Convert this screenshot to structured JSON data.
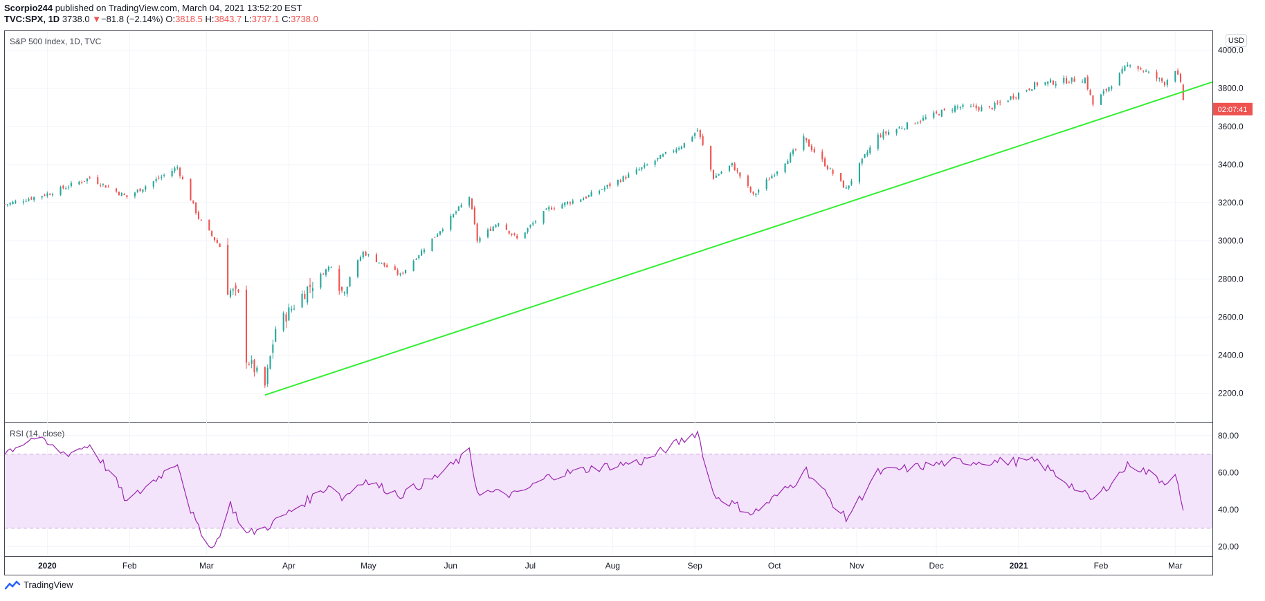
{
  "header": {
    "publisher": "Scorpio244",
    "published_text": " published on TradingView.com, March 04, 2021 13:52:20 EST",
    "symbol": "TVC:SPX, 1D",
    "last": "3738.0",
    "change": "−81.8 (−2.14%)",
    "o_label": "O:",
    "o": "3818.5",
    "h_label": "H:",
    "h": "3843.7",
    "l_label": "L:",
    "l": "3737.1",
    "c_label": "C:",
    "c": "3738.0"
  },
  "footer": {
    "brand": "TradingView"
  },
  "colors": {
    "up": "#26a69a",
    "down": "#ef5350",
    "trendline": "#33ee33",
    "rsi": "#9c27b0",
    "rsi_band": "#f3e4fb"
  },
  "chart_data": [
    {
      "type": "candlestick",
      "title": "S&P 500 Index, 1D, TVC",
      "currency": "USD",
      "countdown": "02:07:41",
      "ylim": [
        2050,
        4100
      ],
      "yticks": [
        2200,
        2400,
        2600,
        2800,
        3000,
        3200,
        3400,
        3600,
        3800,
        4000
      ],
      "ytick_labels": [
        "2200.0",
        "2400.0",
        "2600.0",
        "2800.0",
        "3000.0",
        "3200.0",
        "3400.0",
        "3600.0",
        "3800.0",
        "4000.0"
      ],
      "last_value": 3738.0,
      "xlim": [
        "2019-12-16",
        "2021-03-15"
      ],
      "xticks": [
        "2020-01-01",
        "2020-02-01",
        "2020-03-01",
        "2020-04-01",
        "2020-05-01",
        "2020-06-01",
        "2020-07-01",
        "2020-08-01",
        "2020-09-01",
        "2020-10-01",
        "2020-11-01",
        "2020-12-01",
        "2021-01-01",
        "2021-02-01",
        "2021-03-01"
      ],
      "xtick_labels": [
        "2020",
        "Feb",
        "Mar",
        "Apr",
        "May",
        "Jun",
        "Jul",
        "Aug",
        "Sep",
        "Oct",
        "Nov",
        "Dec",
        "2021",
        "Feb",
        "Mar"
      ],
      "anchors": [
        [
          "2019-12-16",
          3190
        ],
        [
          "2020-01-02",
          3250
        ],
        [
          "2020-01-17",
          3330
        ],
        [
          "2020-01-31",
          3230
        ],
        [
          "2020-02-19",
          3385
        ],
        [
          "2020-02-27",
          3120
        ],
        [
          "2020-03-06",
          2970
        ],
        [
          "2020-03-09",
          2745
        ],
        [
          "2020-03-13",
          2710
        ],
        [
          "2020-03-16",
          2385
        ],
        [
          "2020-03-20",
          2305
        ],
        [
          "2020-03-23",
          2237
        ],
        [
          "2020-03-27",
          2540
        ],
        [
          "2020-04-08",
          2750
        ],
        [
          "2020-04-17",
          2875
        ],
        [
          "2020-04-21",
          2737
        ],
        [
          "2020-04-29",
          2940
        ],
        [
          "2020-05-13",
          2820
        ],
        [
          "2020-05-27",
          3040
        ],
        [
          "2020-06-08",
          3232
        ],
        [
          "2020-06-11",
          3002
        ],
        [
          "2020-06-19",
          3100
        ],
        [
          "2020-06-26",
          3010
        ],
        [
          "2020-07-08",
          3170
        ],
        [
          "2020-07-23",
          3235
        ],
        [
          "2020-08-12",
          3380
        ],
        [
          "2020-08-28",
          3510
        ],
        [
          "2020-09-02",
          3580
        ],
        [
          "2020-09-08",
          3332
        ],
        [
          "2020-09-15",
          3400
        ],
        [
          "2020-09-23",
          3237
        ],
        [
          "2020-10-09",
          3477
        ],
        [
          "2020-10-12",
          3534
        ],
        [
          "2020-10-28",
          3271
        ],
        [
          "2020-11-04",
          3443
        ],
        [
          "2020-11-09",
          3550
        ],
        [
          "2020-12-08",
          3702
        ],
        [
          "2020-12-21",
          3694
        ],
        [
          "2021-01-08",
          3824
        ],
        [
          "2021-01-26",
          3850
        ],
        [
          "2021-01-29",
          3714
        ],
        [
          "2021-02-12",
          3934
        ],
        [
          "2021-02-25",
          3829
        ],
        [
          "2021-03-01",
          3901
        ],
        [
          "2021-03-03",
          3819
        ],
        [
          "2021-03-04",
          3738
        ]
      ],
      "trendline": {
        "from": [
          "2020-03-23",
          2191
        ],
        "to": [
          "2021-03-15",
          3833
        ]
      }
    },
    {
      "type": "line",
      "title": "RSI (14, close)",
      "ylim": [
        15,
        87
      ],
      "yticks": [
        20,
        40,
        60,
        80
      ],
      "ytick_labels": [
        "20.00",
        "40.00",
        "60.00",
        "80.00"
      ],
      "band": [
        30,
        70
      ],
      "series": [
        {
          "anchors": [
            [
              "2019-12-16",
              71
            ],
            [
              "2019-12-27",
              79
            ],
            [
              "2020-01-08",
              70
            ],
            [
              "2020-01-17",
              75
            ],
            [
              "2020-01-27",
              55
            ],
            [
              "2020-01-31",
              44
            ],
            [
              "2020-02-19",
              66
            ],
            [
              "2020-02-24",
              40
            ],
            [
              "2020-02-28",
              26
            ],
            [
              "2020-03-04",
              20
            ],
            [
              "2020-03-10",
              43
            ],
            [
              "2020-03-16",
              27
            ],
            [
              "2020-03-23",
              30
            ],
            [
              "2020-04-08",
              45
            ],
            [
              "2020-04-17",
              54
            ],
            [
              "2020-04-21",
              46
            ],
            [
              "2020-04-29",
              56
            ],
            [
              "2020-05-13",
              48
            ],
            [
              "2020-05-27",
              58
            ],
            [
              "2020-06-08",
              71
            ],
            [
              "2020-06-11",
              50
            ],
            [
              "2020-06-26",
              48
            ],
            [
              "2020-07-08",
              58
            ],
            [
              "2020-07-23",
              62
            ],
            [
              "2020-08-12",
              66
            ],
            [
              "2020-08-28",
              78
            ],
            [
              "2020-09-02",
              82
            ],
            [
              "2020-09-08",
              48
            ],
            [
              "2020-09-23",
              38
            ],
            [
              "2020-10-09",
              55
            ],
            [
              "2020-10-12",
              63
            ],
            [
              "2020-10-28",
              35
            ],
            [
              "2020-11-09",
              60
            ],
            [
              "2020-12-08",
              66
            ],
            [
              "2021-01-08",
              66
            ],
            [
              "2021-01-29",
              45
            ],
            [
              "2021-02-12",
              65
            ],
            [
              "2021-02-25",
              55
            ],
            [
              "2021-03-01",
              60
            ],
            [
              "2021-03-04",
              38
            ]
          ]
        }
      ]
    }
  ]
}
